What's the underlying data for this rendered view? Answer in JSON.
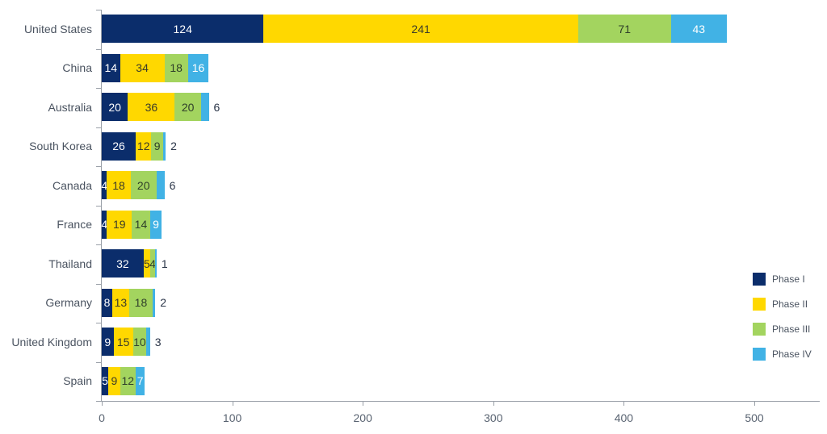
{
  "chart_data": {
    "type": "bar",
    "orientation": "horizontal",
    "stacked": true,
    "title": "",
    "xlabel": "",
    "ylabel": "",
    "xlim": [
      0,
      550
    ],
    "x_ticks": [
      0,
      100,
      200,
      300,
      400,
      500
    ],
    "grid": false,
    "legend_position": "right",
    "categories": [
      "United States",
      "China",
      "Australia",
      "South Korea",
      "Canada",
      "France",
      "Thailand",
      "Germany",
      "United Kingdom",
      "Spain"
    ],
    "series": [
      {
        "name": "Phase I",
        "color": "#0b2d6b",
        "text_color": "#ffffff",
        "values": [
          124,
          14,
          20,
          26,
          4,
          4,
          32,
          8,
          9,
          5
        ]
      },
      {
        "name": "Phase II",
        "color": "#ffd800",
        "text_color": "#3b3b2a",
        "values": [
          241,
          34,
          36,
          12,
          18,
          19,
          5,
          13,
          15,
          9
        ]
      },
      {
        "name": "Phase III",
        "color": "#a3d45f",
        "text_color": "#2f3f2a",
        "values": [
          71,
          18,
          20,
          9,
          20,
          14,
          4,
          18,
          10,
          12
        ]
      },
      {
        "name": "Phase IV",
        "color": "#41b2e5",
        "text_color": "#ffffff",
        "values": [
          43,
          16,
          6,
          2,
          6,
          9,
          1,
          2,
          3,
          7
        ]
      }
    ]
  },
  "axis": {
    "x_tick_labels": [
      "0",
      "100",
      "200",
      "300",
      "400",
      "500"
    ]
  },
  "legend": {
    "items": [
      "Phase I",
      "Phase II",
      "Phase III",
      "Phase IV"
    ]
  }
}
